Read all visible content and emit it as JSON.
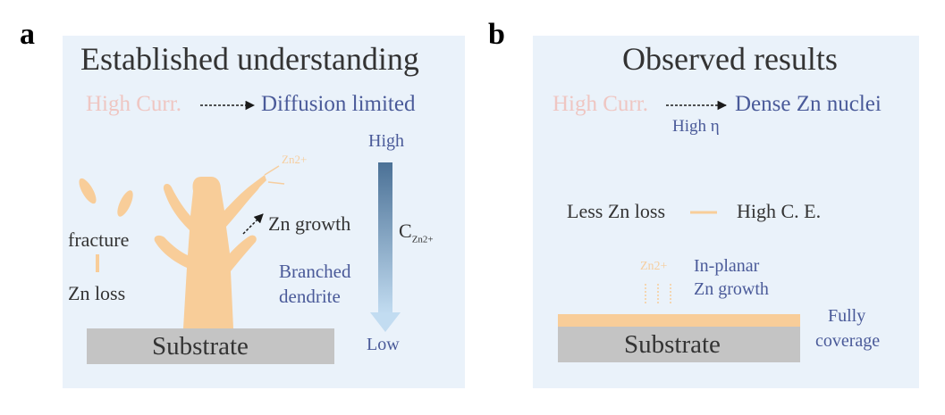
{
  "panel_a": {
    "letter": "a",
    "title": "Established understanding",
    "high_curr": "High Curr.",
    "diffusion": "Diffusion limited",
    "high": "High",
    "low": "Low",
    "conc_main": "C",
    "conc_sub": "Zn2+",
    "zn_ion": "Zn2+",
    "zn_growth": "Zn growth",
    "fracture": "fracture",
    "zn_loss": "Zn loss",
    "branched": "Branched",
    "dendrite": "dendrite",
    "substrate": "Substrate"
  },
  "panel_b": {
    "letter": "b",
    "title": "Observed results",
    "high_curr": "High Curr.",
    "dense": "Dense Zn nuclei",
    "high_eta": "High η",
    "less_loss": "Less Zn loss",
    "high_ce": "High C. E.",
    "zn_ion": "Zn2+",
    "in_planar": "In-planar",
    "zn_growth": "Zn growth",
    "fully": "Fully",
    "coverage": "coverage",
    "substrate": "Substrate"
  },
  "colors": {
    "panel_bg": "#eaf2fa",
    "pink_text": "#efc6c2",
    "blue_text": "#4a5a99",
    "dendrite": "#f8cd99",
    "substrate": "#c4c4c4",
    "gradient_top": "#4b7196",
    "gradient_bottom": "#c2dcf1"
  }
}
